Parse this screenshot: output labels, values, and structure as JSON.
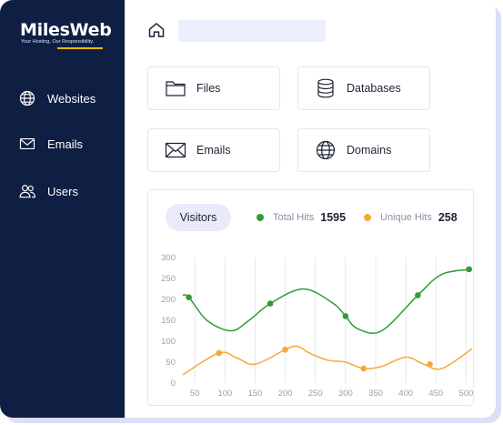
{
  "brand": {
    "name": "MilesWeb",
    "tagline": "Your Hosting, Our Responsibility."
  },
  "sidebar": {
    "items": [
      {
        "label": "Websites",
        "icon": "globe-icon"
      },
      {
        "label": "Emails",
        "icon": "mail-icon"
      },
      {
        "label": "Users",
        "icon": "users-icon"
      }
    ]
  },
  "header": {
    "home_icon": "home-icon",
    "search_value": ""
  },
  "cards": [
    {
      "label": "Files",
      "icon": "folder-icon"
    },
    {
      "label": "Databases",
      "icon": "database-icon"
    },
    {
      "label": "Emails",
      "icon": "mail-icon"
    },
    {
      "label": "Domains",
      "icon": "globe-icon"
    }
  ],
  "visitors": {
    "tab_label": "Visitors",
    "total_hits_label": "Total Hits",
    "total_hits_value": "1595",
    "unique_hits_label": "Unique Hits",
    "unique_hits_value": "258"
  },
  "colors": {
    "sidebar_bg": "#0e1f43",
    "accent": "#f2b705",
    "total_hits": "#2e9d34",
    "unique_hits": "#f5a83a"
  },
  "chart_data": {
    "type": "line",
    "title": "",
    "xlabel": "",
    "ylabel": "",
    "xlim": [
      30,
      510
    ],
    "ylim": [
      0,
      300
    ],
    "xticks": [
      "50",
      "100",
      "150",
      "200",
      "250",
      "300",
      "350",
      "400",
      "450",
      "500"
    ],
    "yticks": [
      "0",
      "50",
      "100",
      "150",
      "200",
      "250",
      "300"
    ],
    "grid": "vertical",
    "series": [
      {
        "name": "Total Hits",
        "color": "#2e9d34",
        "x": [
          30,
          40,
          70,
          110,
          140,
          175,
          230,
          280,
          300,
          320,
          360,
          420,
          460,
          510
        ],
        "y": [
          210,
          205,
          150,
          125,
          150,
          190,
          225,
          190,
          160,
          130,
          125,
          210,
          260,
          272
        ],
        "markers_x": [
          40,
          175,
          300,
          420,
          505
        ],
        "markers_y": [
          205,
          190,
          160,
          210,
          272
        ]
      },
      {
        "name": "Unique Hits",
        "color": "#f5a83a",
        "x": [
          30,
          90,
          120,
          150,
          200,
          220,
          240,
          270,
          300,
          330,
          360,
          400,
          430,
          460,
          510
        ],
        "y": [
          20,
          72,
          60,
          45,
          80,
          88,
          72,
          55,
          50,
          35,
          40,
          62,
          45,
          35,
          82
        ],
        "markers_x": [
          90,
          200,
          330,
          440
        ],
        "markers_y": [
          72,
          80,
          35,
          45
        ]
      }
    ]
  }
}
